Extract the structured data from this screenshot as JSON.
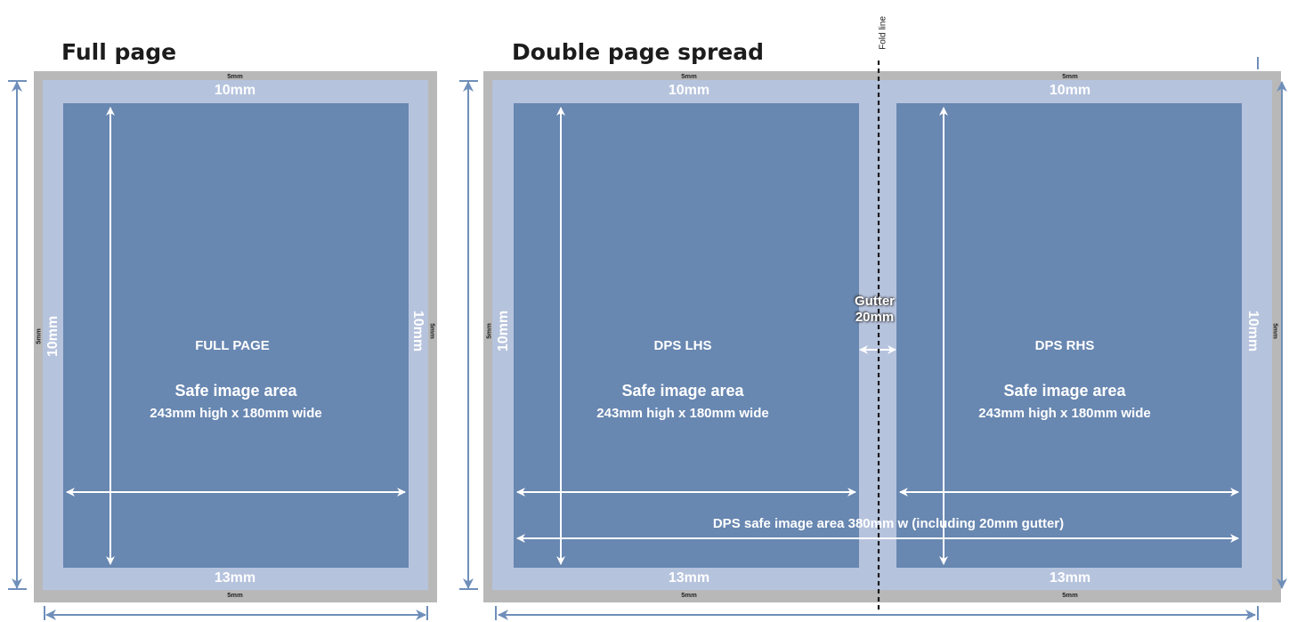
{
  "titles": {
    "full_page": "Full page",
    "dps": "Double page spread"
  },
  "fold_line_label": "Fold line",
  "margins": {
    "bleed": "5mm",
    "trim_top": "10mm",
    "trim_side": "10mm",
    "trim_bottom": "13mm"
  },
  "full_page": {
    "heading": "FULL PAGE",
    "safe_label": "Safe image area",
    "safe_size": "243mm high x 180mm wide"
  },
  "dps_lhs": {
    "heading": "DPS LHS",
    "safe_label": "Safe image area",
    "safe_size": "243mm high x 180mm wide"
  },
  "dps_rhs": {
    "heading": "DPS RHS",
    "safe_label": "Safe image area",
    "safe_size": "243mm high x 180mm wide"
  },
  "gutter": {
    "label": "Gutter",
    "size": "20mm"
  },
  "dps_total": "DPS safe image area 380mm w (including 20mm gutter)",
  "colors": {
    "bleed": "#b8b8b8",
    "trim": "#b6c3dd",
    "safe": "#6887b1",
    "outer_arrows": "#6f8fba",
    "inner_arrows": "#ffffff"
  }
}
